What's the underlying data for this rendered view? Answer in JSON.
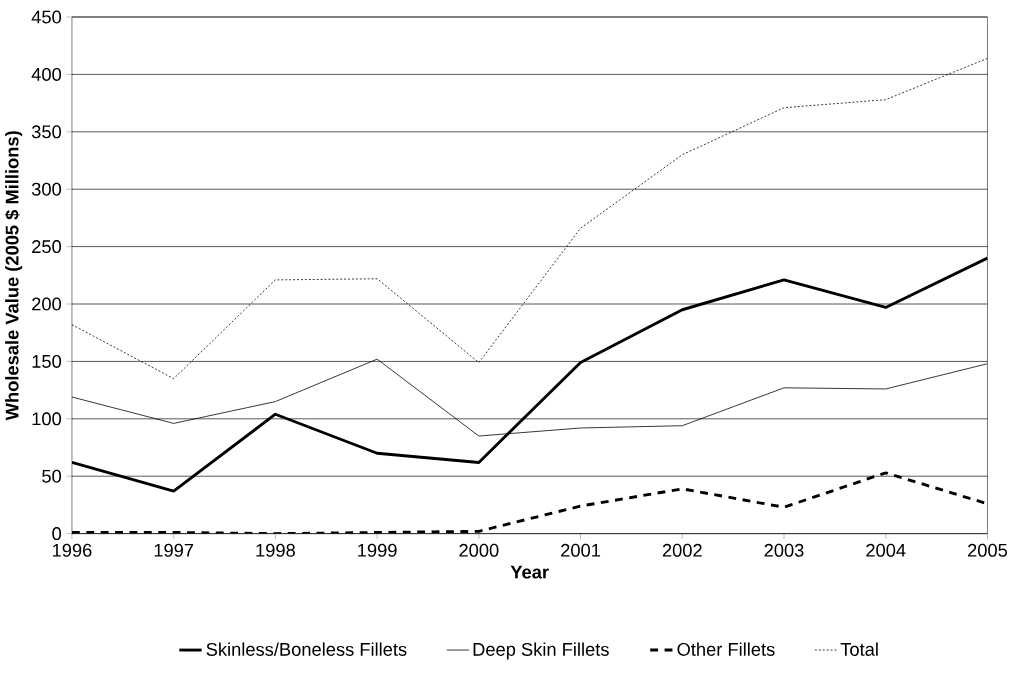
{
  "chart_data": {
    "type": "line",
    "xlabel": "Year",
    "ylabel": "Wholesale Value (2005 $ Millions)",
    "x": [
      1996,
      1997,
      1998,
      1999,
      2000,
      2001,
      2002,
      2003,
      2004,
      2005
    ],
    "series": [
      {
        "name": "Skinless/Boneless Fillets",
        "color": "#000000",
        "line_style": "solid",
        "values": [
          62,
          37,
          104,
          70,
          62,
          149,
          195,
          221,
          197,
          240
        ]
      },
      {
        "name": "Deep Skin Fillets",
        "color": "#000000",
        "line_style": "solid",
        "values": [
          119,
          96,
          115,
          152,
          85,
          92,
          94,
          127,
          126,
          148
        ]
      },
      {
        "name": "Other Fillets",
        "color": "#000000",
        "line_style": "dashed",
        "values": [
          1,
          1,
          0,
          1,
          2,
          24,
          39,
          23,
          53,
          26
        ]
      },
      {
        "name": "Total",
        "color": "#000000",
        "line_style": "dotted",
        "values": [
          182,
          135,
          221,
          222,
          149,
          266,
          330,
          371,
          378,
          414
        ]
      }
    ],
    "xlim": [
      1996,
      2005
    ],
    "xticks": [
      1996,
      1997,
      1998,
      1999,
      2000,
      2001,
      2002,
      2003,
      2004,
      2005
    ],
    "ylim": [
      0,
      450
    ],
    "yticks": [
      0,
      50,
      100,
      150,
      200,
      250,
      300,
      350,
      400,
      450
    ],
    "grid": "y",
    "legend": "bottom",
    "marker": "none"
  }
}
